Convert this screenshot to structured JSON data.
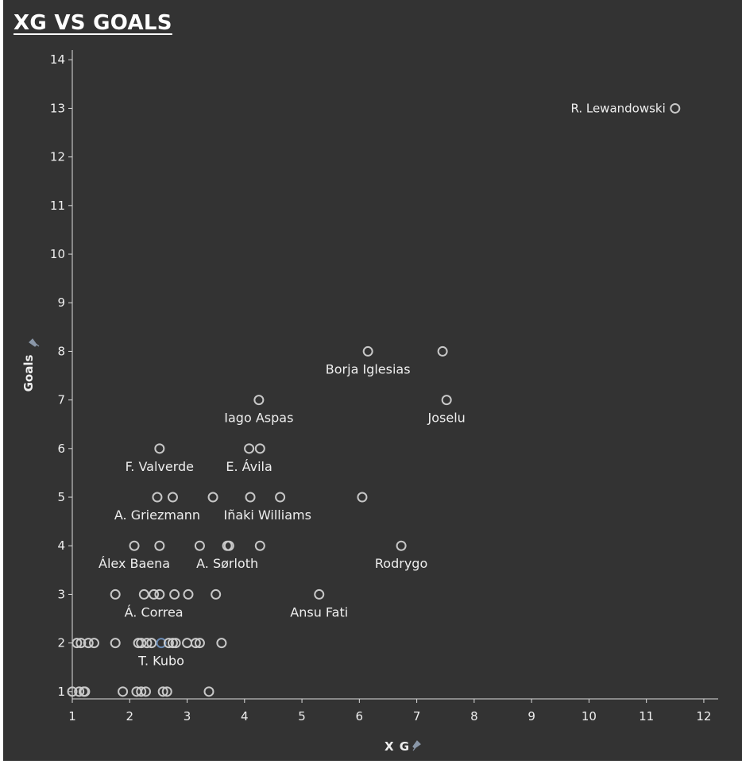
{
  "title": "XG VS GOALS",
  "colors": {
    "background": "#333333",
    "text": "#eeeeee",
    "axis": "#dddddd",
    "marker": "#c8c8c8",
    "highlight": "#6a8bb5",
    "pin_icon": "#8a97a8"
  },
  "chart_data": {
    "type": "scatter",
    "title": "XG VS GOALS",
    "xlabel": "X G",
    "ylabel": "Goals",
    "xlim": [
      1,
      12.25
    ],
    "ylim": [
      0.85,
      14.2
    ],
    "xticks": [
      1,
      2,
      3,
      4,
      5,
      6,
      7,
      8,
      9,
      10,
      11,
      12
    ],
    "yticks": [
      1,
      2,
      3,
      4,
      5,
      6,
      7,
      8,
      9,
      10,
      11,
      12,
      13,
      14
    ],
    "grid": false,
    "points": [
      {
        "x": 11.5,
        "y": 13,
        "label": "R. Lewandowski",
        "labelPos": "left"
      },
      {
        "x": 6.15,
        "y": 8
      },
      {
        "x": 7.45,
        "y": 8
      },
      {
        "x": 4.25,
        "y": 7
      },
      {
        "x": 7.52,
        "y": 7
      },
      {
        "x": 2.52,
        "y": 6
      },
      {
        "x": 4.08,
        "y": 6
      },
      {
        "x": 4.27,
        "y": 6
      },
      {
        "x": 2.48,
        "y": 5
      },
      {
        "x": 2.75,
        "y": 5
      },
      {
        "x": 3.45,
        "y": 5
      },
      {
        "x": 4.1,
        "y": 5
      },
      {
        "x": 4.62,
        "y": 5
      },
      {
        "x": 6.05,
        "y": 5
      },
      {
        "x": 2.08,
        "y": 4
      },
      {
        "x": 2.52,
        "y": 4
      },
      {
        "x": 3.22,
        "y": 4
      },
      {
        "x": 3.7,
        "y": 4
      },
      {
        "x": 3.73,
        "y": 4
      },
      {
        "x": 4.27,
        "y": 4
      },
      {
        "x": 6.73,
        "y": 4
      },
      {
        "x": 1.75,
        "y": 3
      },
      {
        "x": 2.25,
        "y": 3
      },
      {
        "x": 2.42,
        "y": 3
      },
      {
        "x": 2.52,
        "y": 3
      },
      {
        "x": 2.78,
        "y": 3
      },
      {
        "x": 3.02,
        "y": 3
      },
      {
        "x": 3.5,
        "y": 3
      },
      {
        "x": 5.3,
        "y": 3
      },
      {
        "x": 1.08,
        "y": 2
      },
      {
        "x": 1.15,
        "y": 2
      },
      {
        "x": 1.28,
        "y": 2
      },
      {
        "x": 1.38,
        "y": 2
      },
      {
        "x": 1.75,
        "y": 2
      },
      {
        "x": 2.15,
        "y": 2
      },
      {
        "x": 2.2,
        "y": 2
      },
      {
        "x": 2.3,
        "y": 2
      },
      {
        "x": 2.38,
        "y": 2
      },
      {
        "x": 2.55,
        "y": 2,
        "highlight": true
      },
      {
        "x": 2.68,
        "y": 2
      },
      {
        "x": 2.75,
        "y": 2
      },
      {
        "x": 2.8,
        "y": 2
      },
      {
        "x": 3.0,
        "y": 2
      },
      {
        "x": 3.15,
        "y": 2
      },
      {
        "x": 3.22,
        "y": 2
      },
      {
        "x": 3.6,
        "y": 2
      },
      {
        "x": 1.0,
        "y": 1
      },
      {
        "x": 1.12,
        "y": 1
      },
      {
        "x": 1.2,
        "y": 1
      },
      {
        "x": 1.22,
        "y": 1
      },
      {
        "x": 1.88,
        "y": 1
      },
      {
        "x": 2.12,
        "y": 1
      },
      {
        "x": 2.2,
        "y": 1
      },
      {
        "x": 2.28,
        "y": 1
      },
      {
        "x": 2.58,
        "y": 1
      },
      {
        "x": 2.65,
        "y": 1
      },
      {
        "x": 3.38,
        "y": 1
      }
    ],
    "annotations": [
      {
        "text": "Borja Iglesias",
        "x": 6.15,
        "y": 8
      },
      {
        "text": "Iago Aspas",
        "x": 4.25,
        "y": 7
      },
      {
        "text": "Joselu",
        "x": 7.52,
        "y": 7
      },
      {
        "text": "F. Valverde",
        "x": 2.52,
        "y": 6
      },
      {
        "text": "E. Ávila",
        "x": 4.08,
        "y": 6
      },
      {
        "text": "A. Griezmann",
        "x": 2.48,
        "y": 5
      },
      {
        "text": "Iñaki Williams",
        "x": 4.4,
        "y": 5
      },
      {
        "text": "Álex Baena",
        "x": 2.08,
        "y": 4
      },
      {
        "text": "A. Sørloth",
        "x": 3.7,
        "y": 4
      },
      {
        "text": "Rodrygo",
        "x": 6.73,
        "y": 4
      },
      {
        "text": "Á. Correa",
        "x": 2.42,
        "y": 3
      },
      {
        "text": "Ansu Fati",
        "x": 5.3,
        "y": 3
      },
      {
        "text": "T. Kubo",
        "x": 2.55,
        "y": 2
      }
    ]
  }
}
